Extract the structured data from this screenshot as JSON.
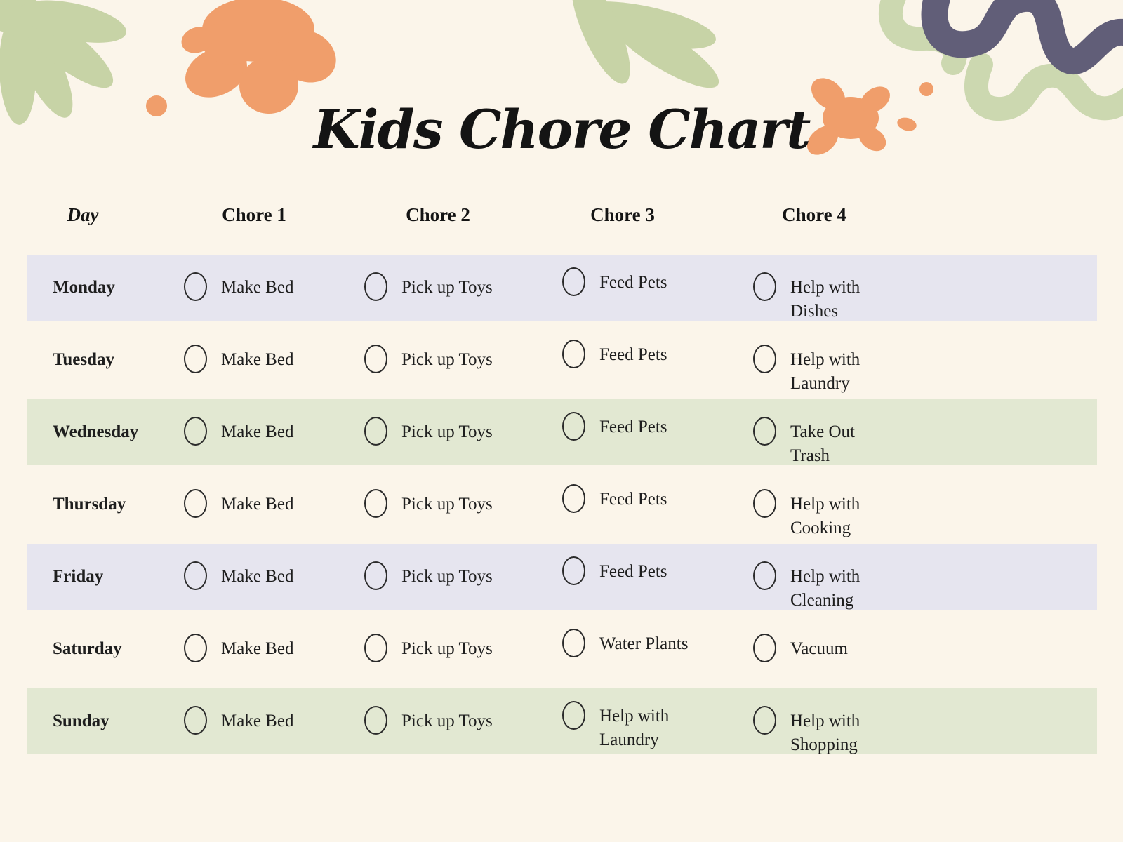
{
  "page": {
    "title": "Kids Chore Chart"
  },
  "table": {
    "headers": [
      "Day",
      "Chore 1",
      "Chore 2",
      "Chore 3",
      "Chore 4"
    ],
    "rows": [
      {
        "day": "Monday",
        "chores": [
          "Make Bed",
          "Pick up Toys",
          "Feed Pets",
          "Help with Dishes"
        ]
      },
      {
        "day": "Tuesday",
        "chores": [
          "Make Bed",
          "Pick up Toys",
          "Feed Pets",
          "Help with Laundry"
        ]
      },
      {
        "day": "Wednesday",
        "chores": [
          "Make Bed",
          "Pick up Toys",
          "Feed Pets",
          "Take Out Trash"
        ]
      },
      {
        "day": "Thursday",
        "chores": [
          "Make Bed",
          "Pick up Toys",
          "Feed Pets",
          "Help with Cooking"
        ]
      },
      {
        "day": "Friday",
        "chores": [
          "Make Bed",
          "Pick up Toys",
          "Feed Pets",
          "Help with Cleaning"
        ]
      },
      {
        "day": "Saturday",
        "chores": [
          "Make Bed",
          "Pick up Toys",
          "Water Plants",
          "Vacuum"
        ]
      },
      {
        "day": "Sunday",
        "chores": [
          "Make Bed",
          "Pick up Toys",
          "Help with Laundry",
          "Help with Shopping"
        ]
      }
    ],
    "checkbox_state": "unchecked"
  },
  "colors": {
    "background": "#fbf5ea",
    "row_lavender": "#e6e5ef",
    "row_green": "#e2e8d2",
    "accent_orange": "#f09e6b",
    "accent_sage": "#c7d3a6",
    "accent_purple": "#615e78",
    "text": "#1e1e1e"
  }
}
